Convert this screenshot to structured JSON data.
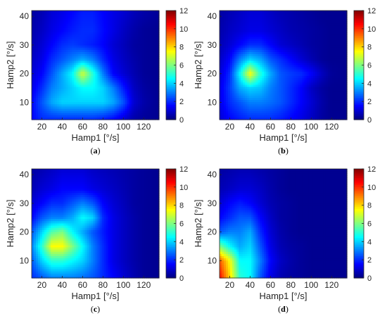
{
  "panels": [
    {
      "caption": "(a)"
    },
    {
      "caption": "(b)"
    },
    {
      "caption": "(c)"
    },
    {
      "caption": "(d)"
    }
  ],
  "colors": {
    "colormap": "jet",
    "axis": "#262626",
    "background": "#ffffff"
  },
  "chart_data": [
    {
      "type": "heatmap",
      "title": "",
      "xlabel": "Hamp1 [°/s]",
      "ylabel": "Hamp2 [°/s]",
      "xlim": [
        10,
        135
      ],
      "ylim": [
        4,
        42
      ],
      "xticks": [
        20,
        40,
        60,
        80,
        100,
        120
      ],
      "yticks": [
        10,
        20,
        30,
        40
      ],
      "colorbar": {
        "min": 0,
        "max": 12,
        "ticks": [
          0,
          2,
          4,
          6,
          8,
          10,
          12
        ]
      },
      "x": [
        10,
        20,
        30,
        40,
        50,
        60,
        70,
        80,
        90,
        100,
        110,
        120,
        135
      ],
      "y": [
        4,
        10,
        15,
        20,
        25,
        30,
        35,
        42
      ],
      "z": [
        [
          1.5,
          2.0,
          2.0,
          2.0,
          2.0,
          2.0,
          2.0,
          1.8,
          1.5,
          1.0,
          0.5,
          0.3,
          0.2
        ],
        [
          1.5,
          2.5,
          3.5,
          4.0,
          4.0,
          4.0,
          4.0,
          4.0,
          3.5,
          2.5,
          1.0,
          0.5,
          0.2
        ],
        [
          1.2,
          2.0,
          3.0,
          3.5,
          4.0,
          4.5,
          4.5,
          4.0,
          3.0,
          1.8,
          0.8,
          0.4,
          0.2
        ],
        [
          1.0,
          1.5,
          2.5,
          3.5,
          4.5,
          7.0,
          5.0,
          3.0,
          1.5,
          1.0,
          0.6,
          0.3,
          0.2
        ],
        [
          0.8,
          1.2,
          2.0,
          2.5,
          3.0,
          3.5,
          3.0,
          2.0,
          1.2,
          0.8,
          0.5,
          0.3,
          0.2
        ],
        [
          0.6,
          1.0,
          1.5,
          2.0,
          2.2,
          2.0,
          1.8,
          1.5,
          1.0,
          0.7,
          0.4,
          0.3,
          0.2
        ],
        [
          0.5,
          0.8,
          1.2,
          1.5,
          1.8,
          2.0,
          2.0,
          1.6,
          1.2,
          0.8,
          0.5,
          0.3,
          0.2
        ],
        [
          0.4,
          0.6,
          1.0,
          1.2,
          1.5,
          1.8,
          1.8,
          1.5,
          1.2,
          1.0,
          0.7,
          0.5,
          0.3
        ]
      ]
    },
    {
      "type": "heatmap",
      "title": "",
      "xlabel": "Hamp1 [°/s]",
      "ylabel": "Hamp2 [°/s]",
      "xlim": [
        10,
        135
      ],
      "ylim": [
        4,
        42
      ],
      "xticks": [
        20,
        40,
        60,
        80,
        100,
        120
      ],
      "yticks": [
        10,
        20,
        30,
        40
      ],
      "colorbar": {
        "min": 0,
        "max": 12,
        "ticks": [
          0,
          2,
          4,
          6,
          8,
          10,
          12
        ]
      },
      "x": [
        10,
        20,
        30,
        40,
        50,
        60,
        70,
        80,
        90,
        100,
        110,
        120,
        135
      ],
      "y": [
        4,
        10,
        15,
        20,
        25,
        30,
        35,
        42
      ],
      "z": [
        [
          1.0,
          1.5,
          1.8,
          2.0,
          2.0,
          2.0,
          1.8,
          1.5,
          1.2,
          0.8,
          0.4,
          0.2,
          0.2
        ],
        [
          1.2,
          2.0,
          2.5,
          3.0,
          3.0,
          2.8,
          2.5,
          2.0,
          1.5,
          1.0,
          0.5,
          0.2,
          0.2
        ],
        [
          1.2,
          2.2,
          3.5,
          4.0,
          3.8,
          3.0,
          2.5,
          2.0,
          1.5,
          0.8,
          0.4,
          0.2,
          0.2
        ],
        [
          1.0,
          2.0,
          4.5,
          7.5,
          5.0,
          3.5,
          2.5,
          2.2,
          2.0,
          1.5,
          0.8,
          0.3,
          0.2
        ],
        [
          0.8,
          1.5,
          3.0,
          4.0,
          3.5,
          2.5,
          2.0,
          1.5,
          1.0,
          0.6,
          0.3,
          0.2,
          0.2
        ],
        [
          0.6,
          1.0,
          1.5,
          2.0,
          2.0,
          1.5,
          1.0,
          0.8,
          0.6,
          0.4,
          0.3,
          0.2,
          0.2
        ],
        [
          0.5,
          0.8,
          1.0,
          1.2,
          1.2,
          1.0,
          0.8,
          0.6,
          0.5,
          0.4,
          0.3,
          0.2,
          0.2
        ],
        [
          0.4,
          0.6,
          0.8,
          1.0,
          1.0,
          0.8,
          0.6,
          0.5,
          0.4,
          0.3,
          0.2,
          0.2,
          0.2
        ]
      ]
    },
    {
      "type": "heatmap",
      "title": "",
      "xlabel": "Hamp1 [°/s]",
      "ylabel": "Hamp2 [°/s]",
      "xlim": [
        10,
        135
      ],
      "ylim": [
        4,
        42
      ],
      "xticks": [
        20,
        40,
        60,
        80,
        100,
        120
      ],
      "yticks": [
        10,
        20,
        30,
        40
      ],
      "colorbar": {
        "min": 0,
        "max": 12,
        "ticks": [
          0,
          2,
          4,
          6,
          8,
          10,
          12
        ]
      },
      "x": [
        10,
        20,
        30,
        40,
        50,
        60,
        70,
        80,
        90,
        100,
        110,
        120,
        135
      ],
      "y": [
        4,
        10,
        15,
        20,
        25,
        30,
        35,
        42
      ],
      "z": [
        [
          2.0,
          2.5,
          3.0,
          3.0,
          3.0,
          2.8,
          2.5,
          2.0,
          1.5,
          1.0,
          0.6,
          0.3,
          0.2
        ],
        [
          2.5,
          4.0,
          5.0,
          5.0,
          4.5,
          4.0,
          3.0,
          2.0,
          1.2,
          0.8,
          0.5,
          0.3,
          0.2
        ],
        [
          3.0,
          5.0,
          7.5,
          7.5,
          6.0,
          4.5,
          3.0,
          2.0,
          1.2,
          0.8,
          0.5,
          0.3,
          0.2
        ],
        [
          2.5,
          4.0,
          5.5,
          6.0,
          4.5,
          3.5,
          2.5,
          1.8,
          1.2,
          0.8,
          0.5,
          0.3,
          0.2
        ],
        [
          1.5,
          2.5,
          3.0,
          3.0,
          3.5,
          4.5,
          4.0,
          2.0,
          1.2,
          0.8,
          0.5,
          0.3,
          0.2
        ],
        [
          1.0,
          1.5,
          2.0,
          2.0,
          2.5,
          3.0,
          2.5,
          1.5,
          1.0,
          0.7,
          0.4,
          0.3,
          0.2
        ],
        [
          0.6,
          1.0,
          1.2,
          1.5,
          1.5,
          1.5,
          1.2,
          1.0,
          0.8,
          0.6,
          0.4,
          0.3,
          0.2
        ],
        [
          0.4,
          0.6,
          0.8,
          1.0,
          1.0,
          1.0,
          0.8,
          0.7,
          0.6,
          0.5,
          0.4,
          0.3,
          0.2
        ]
      ]
    },
    {
      "type": "heatmap",
      "title": "",
      "xlabel": "Hamp1 [°/s]",
      "ylabel": "Hamp2 [°/s]",
      "xlim": [
        10,
        135
      ],
      "ylim": [
        4,
        42
      ],
      "xticks": [
        20,
        40,
        60,
        80,
        100,
        120
      ],
      "yticks": [
        10,
        20,
        30,
        40
      ],
      "colorbar": {
        "min": 0,
        "max": 12,
        "ticks": [
          0,
          2,
          4,
          6,
          8,
          10,
          12
        ]
      },
      "x": [
        10,
        20,
        30,
        40,
        50,
        60,
        70,
        80,
        90,
        100,
        110,
        120,
        135
      ],
      "y": [
        4,
        10,
        15,
        20,
        25,
        30,
        35,
        42
      ],
      "z": [
        [
          10.5,
          8.0,
          5.0,
          4.5,
          2.5,
          1.2,
          0.6,
          0.4,
          0.3,
          0.2,
          0.2,
          0.2,
          0.2
        ],
        [
          9.5,
          7.5,
          4.5,
          4.5,
          3.0,
          1.5,
          0.8,
          0.5,
          0.3,
          0.2,
          0.2,
          0.2,
          0.2
        ],
        [
          6.0,
          4.5,
          3.5,
          4.0,
          2.5,
          1.2,
          0.6,
          0.4,
          0.3,
          0.2,
          0.2,
          0.2,
          0.2
        ],
        [
          2.5,
          3.0,
          3.0,
          3.5,
          2.0,
          1.0,
          0.5,
          0.3,
          0.2,
          0.2,
          0.2,
          0.2,
          0.2
        ],
        [
          1.5,
          2.0,
          2.5,
          2.5,
          1.5,
          0.8,
          0.4,
          0.3,
          0.2,
          0.2,
          0.2,
          0.2,
          0.2
        ],
        [
          1.0,
          1.5,
          1.8,
          1.5,
          1.0,
          0.6,
          0.4,
          0.3,
          0.2,
          0.2,
          0.2,
          0.2,
          0.2
        ],
        [
          0.6,
          0.8,
          1.0,
          1.0,
          0.8,
          0.5,
          0.3,
          0.2,
          0.2,
          0.2,
          0.2,
          0.2,
          0.2
        ],
        [
          0.4,
          0.5,
          0.6,
          0.6,
          0.5,
          0.4,
          0.3,
          0.2,
          0.2,
          0.2,
          0.2,
          0.2,
          0.2
        ]
      ]
    }
  ]
}
